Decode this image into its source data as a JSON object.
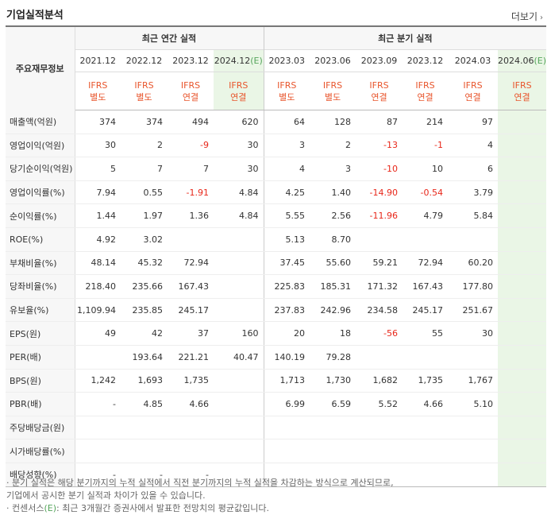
{
  "title": "기업실적분석",
  "more_label": "더보기",
  "header": {
    "row_label": "주요재무정보",
    "annual_group": "최근 연간 실적",
    "quarter_group": "최근 분기 실적",
    "annual_periods": [
      "2021.12",
      "2022.12",
      "2023.12",
      "2024.12"
    ],
    "quarter_periods": [
      "2023.03",
      "2023.06",
      "2023.09",
      "2023.12",
      "2024.03",
      "2024.06"
    ],
    "estimate_mark": "(E)",
    "annual_types": [
      [
        "IFRS",
        "별도"
      ],
      [
        "IFRS",
        "별도"
      ],
      [
        "IFRS",
        "연결"
      ],
      [
        "IFRS",
        "연결"
      ]
    ],
    "quarter_types": [
      [
        "IFRS",
        "별도"
      ],
      [
        "IFRS",
        "별도"
      ],
      [
        "IFRS",
        "연결"
      ],
      [
        "IFRS",
        "연결"
      ],
      [
        "IFRS",
        "연결"
      ],
      [
        "IFRS",
        "연결"
      ]
    ]
  },
  "rows": [
    {
      "name": "매출액(억원)",
      "values": [
        "374",
        "374",
        "494",
        "620",
        "64",
        "128",
        "87",
        "214",
        "97",
        ""
      ]
    },
    {
      "name": "영업이익(억원)",
      "values": [
        "30",
        "2",
        "-9",
        "30",
        "3",
        "2",
        "-13",
        "-1",
        "4",
        ""
      ]
    },
    {
      "name": "당기순이익(억원)",
      "values": [
        "5",
        "7",
        "7",
        "30",
        "4",
        "3",
        "-10",
        "10",
        "6",
        ""
      ]
    },
    {
      "name": "영업이익률(%)",
      "values": [
        "7.94",
        "0.55",
        "-1.91",
        "4.84",
        "4.25",
        "1.40",
        "-14.90",
        "-0.54",
        "3.79",
        ""
      ]
    },
    {
      "name": "순이익률(%)",
      "values": [
        "1.44",
        "1.97",
        "1.36",
        "4.84",
        "5.55",
        "2.56",
        "-11.96",
        "4.79",
        "5.84",
        ""
      ]
    },
    {
      "name": "ROE(%)",
      "values": [
        "4.92",
        "3.02",
        "",
        "",
        "5.13",
        "8.70",
        "",
        "",
        "",
        ""
      ]
    },
    {
      "name": "부채비율(%)",
      "values": [
        "48.14",
        "45.32",
        "72.94",
        "",
        "37.45",
        "55.60",
        "59.21",
        "72.94",
        "60.20",
        ""
      ]
    },
    {
      "name": "당좌비율(%)",
      "values": [
        "218.40",
        "235.66",
        "167.43",
        "",
        "225.83",
        "185.31",
        "171.32",
        "167.43",
        "177.80",
        ""
      ]
    },
    {
      "name": "유보율(%)",
      "values": [
        "1,109.94",
        "235.85",
        "245.17",
        "",
        "237.83",
        "242.96",
        "234.58",
        "245.17",
        "251.67",
        ""
      ]
    },
    {
      "name": "EPS(원)",
      "values": [
        "49",
        "42",
        "37",
        "160",
        "20",
        "18",
        "-56",
        "55",
        "30",
        ""
      ]
    },
    {
      "name": "PER(배)",
      "values": [
        "",
        "193.64",
        "221.21",
        "40.47",
        "140.19",
        "79.28",
        "",
        "",
        "",
        ""
      ]
    },
    {
      "name": "BPS(원)",
      "values": [
        "1,242",
        "1,693",
        "1,735",
        "",
        "1,713",
        "1,730",
        "1,682",
        "1,735",
        "1,767",
        ""
      ]
    },
    {
      "name": "PBR(배)",
      "values": [
        "-",
        "4.85",
        "4.66",
        "",
        "6.99",
        "6.59",
        "5.52",
        "4.66",
        "5.10",
        ""
      ]
    },
    {
      "name": "주당배당금(원)",
      "values": [
        "",
        "",
        "",
        "",
        "",
        "",
        "",
        "",
        "",
        ""
      ]
    },
    {
      "name": "시가배당률(%)",
      "values": [
        "",
        "",
        "",
        "",
        "",
        "",
        "",
        "",
        "",
        ""
      ]
    },
    {
      "name": "배당성향(%)",
      "values": [
        "-",
        "-",
        "-",
        "",
        "",
        "",
        "",
        "",
        "",
        ""
      ]
    }
  ],
  "notes": [
    "· 분기 실적은 해당 분기까지의 누적 실적에서 직전 분기까지의 누적 실적을 차감하는 방식으로 계산되므로,",
    "  기업에서 공시한 분기 실적과 차이가 있을 수 있습니다.",
    "· 컨센서스"
  ],
  "note_consensus_suffix": ": 최근 3개월간 증권사에서 발표한 전망치의 평균값입니다."
}
